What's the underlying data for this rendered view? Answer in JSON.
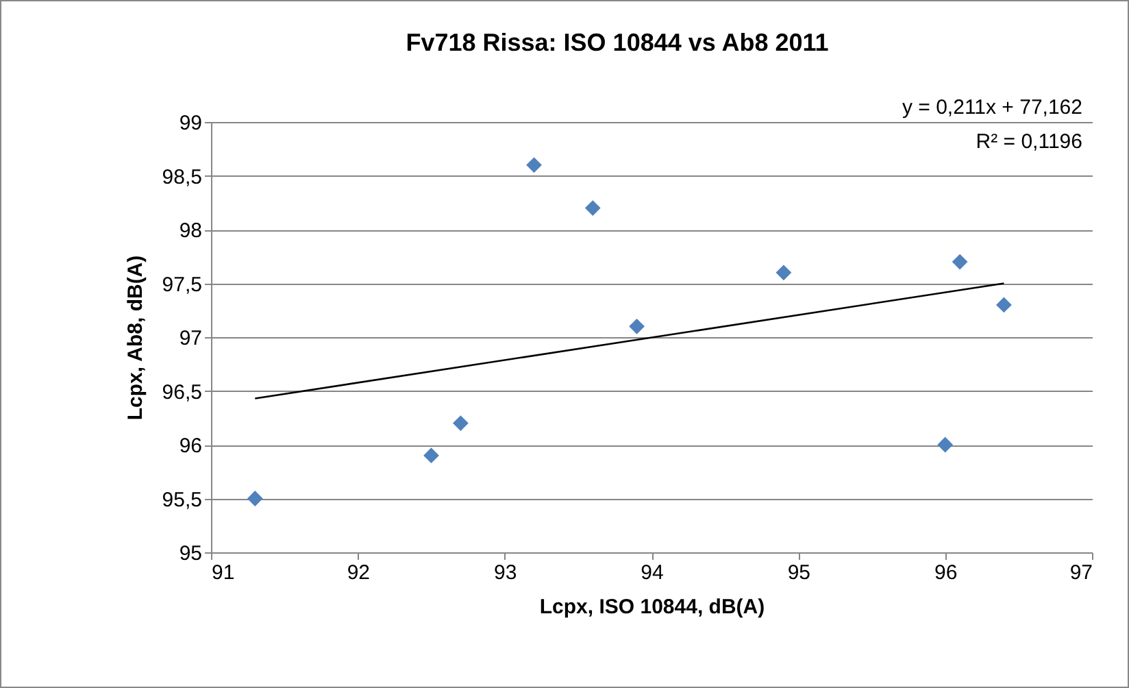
{
  "chart_data": {
    "type": "scatter",
    "title": "Fv718 Rissa: ISO 10844 vs Ab8 2011",
    "xlabel": "Lcpx, ISO 10844, dB(A)",
    "ylabel": "Lcpx, Ab8, dB(A)",
    "annotations": [
      "y = 0,211x + 77,162",
      "R² = 0,1196"
    ],
    "xlim": [
      91,
      97
    ],
    "xticks": [
      91,
      92,
      93,
      94,
      95,
      96,
      97
    ],
    "ylim": [
      95,
      99
    ],
    "yticks": [
      95,
      {
        "value": 95.5,
        "label": "95,5"
      },
      96,
      {
        "value": 96.5,
        "label": "96,5"
      },
      97,
      {
        "value": 97.5,
        "label": "97,5"
      },
      98,
      {
        "value": 98.5,
        "label": "98,5"
      },
      99
    ],
    "grid": "y",
    "series": [
      {
        "color": "#4f81bd",
        "marker": "diamond",
        "x": [
          91.3,
          92.5,
          92.7,
          93.2,
          93.6,
          93.9,
          94.9,
          96.0,
          96.1,
          96.4
        ],
        "values": [
          95.5,
          95.9,
          96.2,
          98.6,
          98.2,
          97.1,
          97.6,
          96.0,
          97.7,
          97.3
        ]
      },
      {
        "type": "line",
        "color": "#000000",
        "x": [
          91.3,
          96.4
        ],
        "values": [
          96.43,
          97.5
        ]
      }
    ]
  }
}
